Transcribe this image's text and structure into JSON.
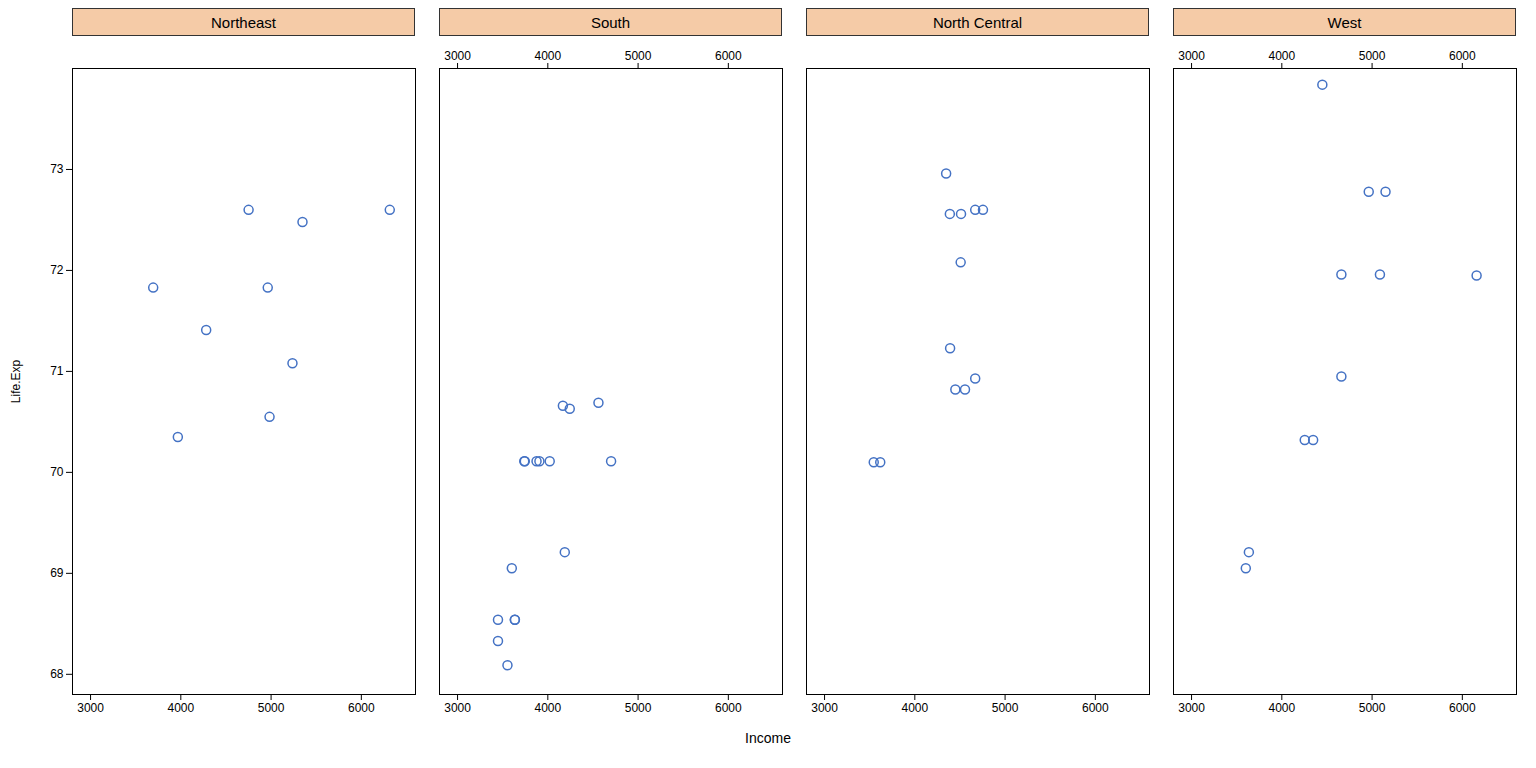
{
  "chart_data": {
    "type": "scatter",
    "xlabel": "Income",
    "ylabel": "Life.Exp",
    "xlim": [
      2800,
      6600
    ],
    "ylim": [
      67.8,
      74.0
    ],
    "xticks": [
      3000,
      4000,
      5000,
      6000
    ],
    "yticks": [
      68,
      69,
      70,
      71,
      72,
      73
    ],
    "color": "#4472C4",
    "marker": "circle",
    "series": [
      {
        "name": "Northeast",
        "x": [
          3694,
          4963,
          5348,
          4751,
          5237,
          4983,
          6315,
          4281,
          3967
        ],
        "values": [
          71.83,
          71.83,
          72.48,
          72.6,
          71.08,
          70.55,
          72.6,
          71.41,
          70.35
        ]
      },
      {
        "name": "South",
        "x": [
          3601,
          3635,
          4167,
          3875,
          4701,
          3553,
          4243,
          3745,
          4021,
          3448,
          4188,
          3739,
          4561,
          3448,
          3635,
          3907
        ],
        "values": [
          69.05,
          68.54,
          70.66,
          70.11,
          70.11,
          68.09,
          70.63,
          70.11,
          70.11,
          68.33,
          69.21,
          70.11,
          70.69,
          68.54,
          68.54,
          70.11
        ]
      },
      {
        "name": "North Central",
        "x": [
          4347,
          4512,
          4669,
          4755,
          4669,
          4508,
          4391,
          4556,
          3617,
          4449,
          4388,
          3545
        ],
        "values": [
          72.96,
          72.56,
          72.6,
          72.6,
          70.93,
          72.08,
          71.23,
          70.82,
          70.1,
          70.82,
          72.56,
          70.1
        ]
      },
      {
        "name": "West",
        "x": [
          4449,
          6158,
          5087,
          4963,
          4254,
          4347,
          3601,
          4660,
          5149,
          4660,
          3635
        ],
        "values": [
          73.84,
          71.95,
          71.96,
          72.78,
          70.32,
          70.32,
          69.05,
          70.95,
          72.78,
          71.96,
          69.21
        ]
      }
    ]
  }
}
